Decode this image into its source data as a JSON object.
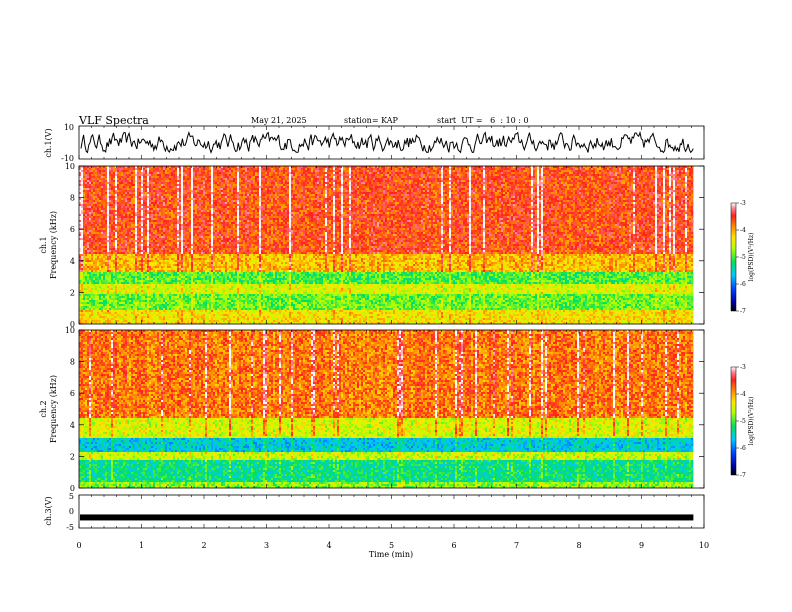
{
  "header": {
    "title": "VLF Spectra",
    "date": "May 21, 2025",
    "station": "station= KAP",
    "start": "start  UT =   6  : 10 : 0"
  },
  "chart_data": [
    {
      "id": "ch1_waveform",
      "type": "line",
      "ylabel": "ch.1(V)",
      "ylim": [
        -10,
        10
      ],
      "yticks": [
        "10",
        "-10"
      ],
      "xlim": [
        0,
        10
      ],
      "series": [
        {
          "color": "#000000",
          "amplitude_range": [
            -6,
            6
          ]
        }
      ]
    },
    {
      "id": "ch1_spectrogram",
      "type": "heatmap",
      "ylabel_line1": "ch.1",
      "ylabel_line2": "Frequency (kHz)",
      "ylim": [
        0,
        10
      ],
      "yticks": [
        "0",
        "2",
        "4",
        "6",
        "8",
        "10"
      ],
      "xlim": [
        0,
        9.83
      ],
      "colorbar": {
        "label": "log(PSD)(V²/Hz)",
        "range": [
          -7,
          -3
        ],
        "ticks": [
          "-3",
          "-4",
          "-5",
          "-6",
          "-7"
        ]
      },
      "bands": [
        {
          "from_khz": 0,
          "to_khz": 1.0,
          "level": -4.3
        },
        {
          "from_khz": 1.0,
          "to_khz": 2.0,
          "level": -4.9
        },
        {
          "from_khz": 2.0,
          "to_khz": 2.6,
          "level": -4.5
        },
        {
          "from_khz": 2.6,
          "to_khz": 3.3,
          "level": -5.0
        },
        {
          "from_khz": 3.3,
          "to_khz": 4.5,
          "level": -4.1
        },
        {
          "from_khz": 4.5,
          "to_khz": 10,
          "level": -3.6
        }
      ]
    },
    {
      "id": "ch2_spectrogram",
      "type": "heatmap",
      "ylabel_line1": "ch.2",
      "ylabel_line2": "Frequency (kHz)",
      "ylim": [
        0,
        10
      ],
      "yticks": [
        "0",
        "2",
        "4",
        "6",
        "8",
        "10"
      ],
      "xlim": [
        0,
        9.83
      ],
      "colorbar": {
        "label": "log(PSD)(V²/Hz)",
        "range": [
          -7,
          -3
        ],
        "ticks": [
          "-3",
          "-4",
          "-5",
          "-6",
          "-7"
        ]
      },
      "bands": [
        {
          "from_khz": 0,
          "to_khz": 0.5,
          "level": -4.8
        },
        {
          "from_khz": 0.5,
          "to_khz": 1.8,
          "level": -5.3
        },
        {
          "from_khz": 1.8,
          "to_khz": 2.3,
          "level": -4.6
        },
        {
          "from_khz": 2.3,
          "to_khz": 3.2,
          "level": -5.6
        },
        {
          "from_khz": 3.2,
          "to_khz": 4.5,
          "level": -4.5
        },
        {
          "from_khz": 4.5,
          "to_khz": 10,
          "level": -3.8
        }
      ]
    },
    {
      "id": "ch3_waveform",
      "type": "line",
      "ylabel": "ch.3(V)",
      "ylim": [
        -5,
        5
      ],
      "yticks": [
        "5",
        "0",
        "-5"
      ],
      "xlim": [
        0,
        9.83
      ],
      "series": [
        {
          "color": "#000000",
          "value": -1.8
        }
      ]
    }
  ],
  "xaxis": {
    "label": "Time (min)",
    "range": [
      0,
      10
    ],
    "ticks": [
      "0",
      "1",
      "2",
      "3",
      "4",
      "5",
      "6",
      "7",
      "8",
      "9",
      "10"
    ]
  }
}
